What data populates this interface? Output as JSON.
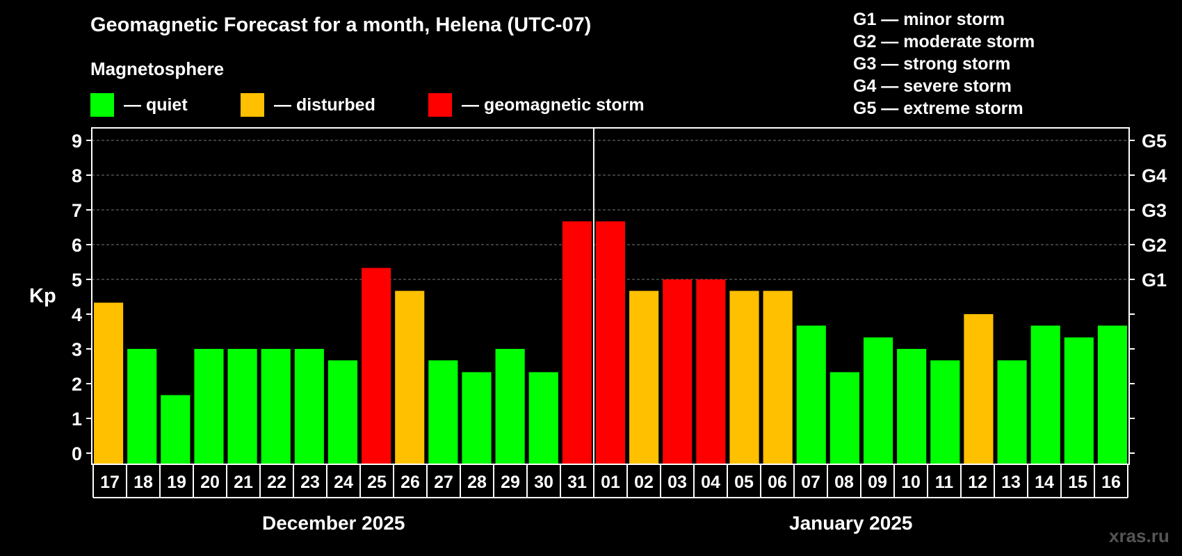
{
  "chart_data": {
    "type": "bar",
    "title": "Geomagnetic Forecast for a month, Helena (UTC-07)",
    "ylabel": "Kp",
    "ylim": [
      0,
      9
    ],
    "yticks": [
      "0",
      "1",
      "2",
      "3",
      "4",
      "5",
      "6",
      "7",
      "8",
      "9"
    ],
    "right_axis_labels": [
      {
        "kp": 5,
        "label": "G1"
      },
      {
        "kp": 6,
        "label": "G2"
      },
      {
        "kp": 7,
        "label": "G3"
      },
      {
        "kp": 8,
        "label": "G4"
      },
      {
        "kp": 9,
        "label": "G5"
      }
    ],
    "grid": "dashed horizontal lines at Kp 5 to 9",
    "categories": [
      "17",
      "18",
      "19",
      "20",
      "21",
      "22",
      "23",
      "24",
      "25",
      "26",
      "27",
      "28",
      "29",
      "30",
      "31",
      "01",
      "02",
      "03",
      "04",
      "05",
      "06",
      "07",
      "08",
      "09",
      "10",
      "11",
      "12",
      "13",
      "14",
      "15",
      "16"
    ],
    "values": [
      4.33,
      3.0,
      1.67,
      3.0,
      3.0,
      3.0,
      3.0,
      2.67,
      5.33,
      4.67,
      2.67,
      2.33,
      3.0,
      2.33,
      6.67,
      6.67,
      4.67,
      5.0,
      5.0,
      4.67,
      4.67,
      3.67,
      2.33,
      3.33,
      3.0,
      2.67,
      4.0,
      2.67,
      3.67,
      3.33,
      3.67
    ],
    "categories_status": [
      "disturbed",
      "quiet",
      "quiet",
      "quiet",
      "quiet",
      "quiet",
      "quiet",
      "quiet",
      "storm",
      "disturbed",
      "quiet",
      "quiet",
      "quiet",
      "quiet",
      "storm",
      "storm",
      "disturbed",
      "storm",
      "storm",
      "disturbed",
      "disturbed",
      "quiet",
      "quiet",
      "quiet",
      "quiet",
      "quiet",
      "disturbed",
      "quiet",
      "quiet",
      "quiet",
      "quiet"
    ],
    "month_groups": [
      {
        "label": "December 2025",
        "count": 15
      },
      {
        "label": "January 2025",
        "count": 16
      }
    ],
    "status_colors": {
      "quiet": "#00ff00",
      "disturbed": "#ffc000",
      "storm": "#ff0000"
    }
  },
  "legend": {
    "heading": "Magnetosphere",
    "items": [
      {
        "label": "— quiet",
        "color": "#00ff00"
      },
      {
        "label": "— disturbed",
        "color": "#ffc000"
      },
      {
        "label": "— geomagnetic storm",
        "color": "#ff0000"
      }
    ]
  },
  "g_scale": [
    "G1 — minor storm",
    "G2 — moderate storm",
    "G3 — strong storm",
    "G4 — severe storm",
    "G5 — extreme storm"
  ],
  "watermark": "xras.ru"
}
